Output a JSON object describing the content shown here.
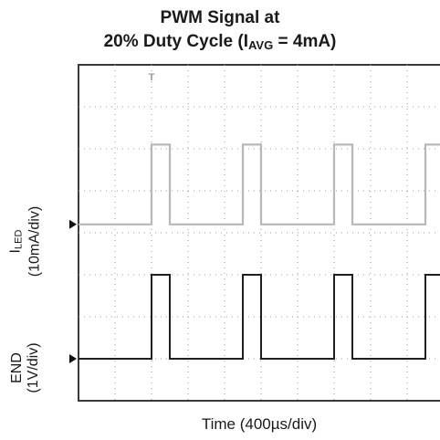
{
  "chart_data": {
    "type": "line",
    "title_line1": "PWM Signal at",
    "title_line2_prefix": "20% Duty Cycle (I",
    "title_line2_sub": "AVG",
    "title_line2_suffix": " = 4mA)",
    "xlabel": "Time (400µs/div)",
    "ylabels": [
      {
        "main": "I",
        "sub": "LED",
        "scale": "(10mA/div)"
      },
      {
        "main": "END",
        "sub": "",
        "scale": "(1V/div)"
      }
    ],
    "grid": true,
    "divisions_x": 10,
    "divisions_y": 8,
    "trigger_marker": "T",
    "series": [
      {
        "name": "I_LED",
        "color": "#b8b8b8",
        "baseline_div": 4.2,
        "high_div": 6.1,
        "pulses": [
          [
            2.0,
            2.5
          ],
          [
            4.5,
            5.0
          ],
          [
            7.0,
            7.5
          ],
          [
            9.5,
            10.0
          ]
        ]
      },
      {
        "name": "END",
        "color": "#202020",
        "baseline_div": 1.0,
        "high_div": 3.0,
        "pulses": [
          [
            2.0,
            2.5
          ],
          [
            4.5,
            5.0
          ],
          [
            7.0,
            7.5
          ],
          [
            9.5,
            10.0
          ]
        ]
      }
    ]
  }
}
